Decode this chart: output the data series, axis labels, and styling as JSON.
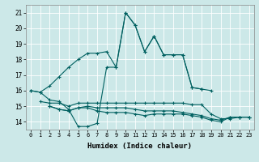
{
  "xlabel": "Humidex (Indice chaleur)",
  "xlim": [
    -0.5,
    23.5
  ],
  "ylim": [
    13.5,
    21.5
  ],
  "xticks": [
    0,
    1,
    2,
    3,
    4,
    5,
    6,
    7,
    8,
    9,
    10,
    11,
    12,
    13,
    14,
    15,
    16,
    17,
    18,
    19,
    20,
    21,
    22,
    23
  ],
  "yticks": [
    14,
    15,
    16,
    17,
    18,
    19,
    20,
    21
  ],
  "bg_color": "#cce8e8",
  "line_color": "#006060",
  "grid_color": "#ffffff",
  "line1_x": [
    0,
    1,
    2,
    3,
    4,
    5,
    6,
    7,
    8,
    9,
    10,
    11,
    12,
    13,
    14,
    15,
    16,
    17,
    18,
    19
  ],
  "line1_y": [
    16.0,
    15.9,
    16.3,
    16.9,
    17.5,
    18.0,
    18.4,
    18.4,
    18.5,
    17.5,
    21.0,
    20.2,
    18.5,
    19.5,
    18.3,
    18.3,
    18.3,
    16.2,
    16.1,
    16.0
  ],
  "line2_x": [
    0,
    1,
    2,
    3,
    4,
    5,
    6,
    7,
    8,
    9,
    10,
    11,
    12,
    13,
    14,
    15,
    16,
    17,
    18
  ],
  "line2_y": [
    16.0,
    15.9,
    15.4,
    15.3,
    14.8,
    13.7,
    13.7,
    13.9,
    17.5,
    17.5,
    21.0,
    20.2,
    18.5,
    19.5,
    18.3,
    18.3,
    18.3,
    16.2,
    16.1
  ],
  "line3_x": [
    1,
    2,
    3,
    4,
    5,
    6,
    7,
    8,
    9,
    10,
    11,
    12,
    13,
    14,
    15,
    16,
    17,
    18,
    19,
    20,
    21,
    22,
    23
  ],
  "line3_y": [
    15.3,
    15.2,
    15.2,
    15.0,
    15.2,
    15.2,
    15.2,
    15.2,
    15.2,
    15.2,
    15.2,
    15.2,
    15.2,
    15.2,
    15.2,
    15.2,
    15.1,
    15.1,
    14.5,
    14.2,
    14.2,
    14.3,
    14.3
  ],
  "line4_x": [
    2,
    3,
    4,
    5,
    6,
    7,
    8,
    9,
    10,
    11,
    12,
    13,
    14,
    15,
    16,
    17,
    18,
    19,
    20,
    21,
    22,
    23
  ],
  "line4_y": [
    15.0,
    14.8,
    14.7,
    14.9,
    15.0,
    14.9,
    14.9,
    14.9,
    14.9,
    14.8,
    14.7,
    14.7,
    14.7,
    14.7,
    14.6,
    14.5,
    14.4,
    14.2,
    14.1,
    14.3,
    14.3,
    14.3
  ],
  "line5_x": [
    2,
    3,
    4,
    5,
    6,
    7,
    8,
    9,
    10,
    11,
    12,
    13,
    14,
    15,
    16,
    17,
    18,
    19,
    20,
    21,
    22,
    23
  ],
  "line5_y": [
    15.0,
    14.8,
    14.7,
    14.9,
    14.9,
    14.7,
    14.6,
    14.6,
    14.6,
    14.5,
    14.4,
    14.5,
    14.5,
    14.5,
    14.5,
    14.4,
    14.3,
    14.1,
    14.0,
    14.3,
    14.3,
    14.3
  ]
}
